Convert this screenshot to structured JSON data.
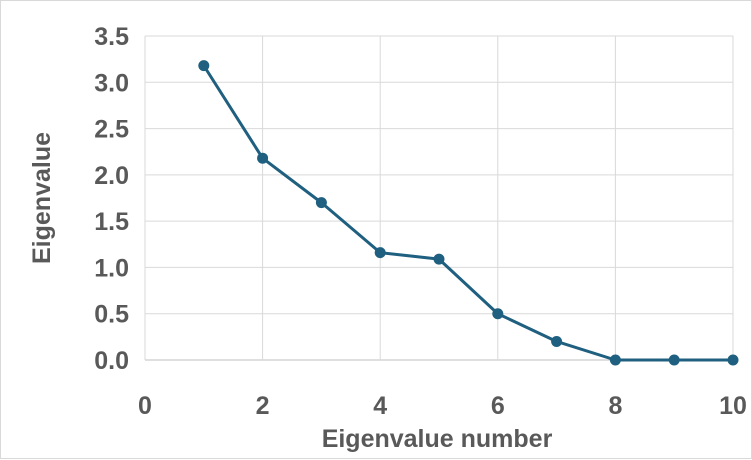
{
  "chart_data": {
    "type": "line",
    "title": "",
    "xlabel": "Eigenvalue number",
    "ylabel": "Eigenvalue",
    "xlim": [
      0,
      10
    ],
    "ylim": [
      0,
      3.5
    ],
    "x_ticks": [
      "0",
      "2",
      "4",
      "6",
      "8",
      "10"
    ],
    "y_ticks": [
      "0.0",
      "0.5",
      "1.0",
      "1.5",
      "2.0",
      "2.5",
      "3.0",
      "3.5"
    ],
    "grid": true,
    "legend": "none",
    "series": [
      {
        "x": [
          1,
          2,
          3,
          4,
          5,
          6,
          7,
          8,
          9,
          10
        ],
        "values": [
          3.18,
          2.18,
          1.7,
          1.16,
          1.09,
          0.5,
          0.2,
          0.0,
          0.0,
          0.0
        ],
        "color": "#1f5f7f"
      }
    ]
  }
}
